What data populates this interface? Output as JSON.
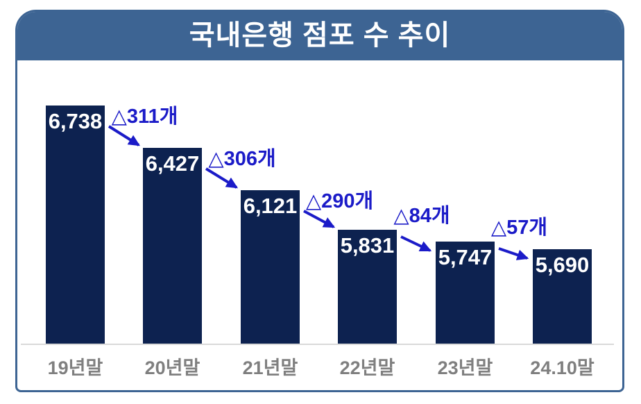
{
  "window": {
    "title": "국내은행 점포 수 추이"
  },
  "chart_data": {
    "type": "bar",
    "title": "국내은행 점포 수 추이",
    "categories": [
      "19년말",
      "20년말",
      "21년말",
      "22년말",
      "23년말",
      "24.10말"
    ],
    "values": [
      6738,
      6427,
      6121,
      5831,
      5747,
      5690
    ],
    "value_labels": [
      "6,738",
      "6,427",
      "6,121",
      "5,831",
      "5,747",
      "5,690"
    ],
    "delta_labels": [
      "△311개",
      "△306개",
      "△290개",
      "△84개",
      "△57개"
    ],
    "delta_values": [
      311,
      306,
      290,
      84,
      57
    ],
    "xlabel": "",
    "ylabel": "",
    "ylim": [
      5000,
      6800
    ],
    "grid": false,
    "legend": "none"
  },
  "style": {
    "header_bg": "#3D6493",
    "card_border": "#3D6493",
    "bar_fill": "#0D2250",
    "value_text": "#FFFFFF",
    "annotation_blue": "#1B1BC8",
    "axis_label_gray": "#7F7F7F",
    "axis_line_gray": "#D9D9D9"
  }
}
